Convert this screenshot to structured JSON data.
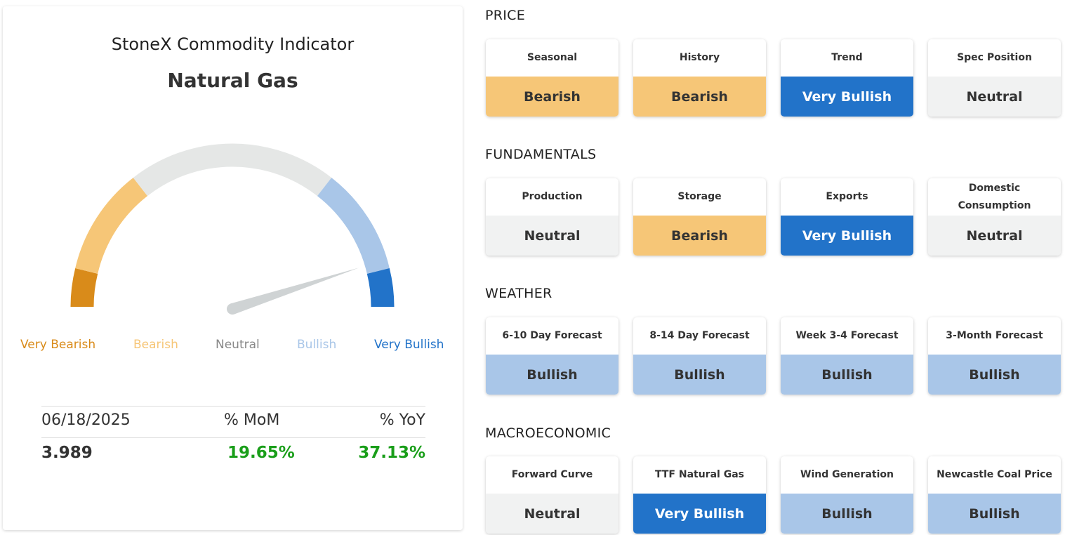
{
  "indicator": {
    "title": "StoneX Commodity Indicator",
    "commodity": "Natural Gas"
  },
  "gauge": {
    "needle_level": 0.9,
    "labels": [
      "Very Bearish",
      "Bearish",
      "Neutral",
      "Bullish",
      "Very Bullish"
    ],
    "colors": {
      "very_bearish": "#d98b1a",
      "bearish": "#f6c677",
      "neutral": "#e5e7e6",
      "bullish": "#a9c6e8",
      "very_bullish": "#2273c9",
      "needle": "#cfd3d4"
    }
  },
  "stats": {
    "date": "06/18/2025",
    "mom_label": "% MoM",
    "yoy_label": "% YoY",
    "price": "3.989",
    "mom": "19.65%",
    "yoy": "37.13%",
    "positive_color": "#1a9e1a"
  },
  "sections": [
    {
      "title": "PRICE",
      "tiles": [
        {
          "label": "Seasonal",
          "value": "Bearish",
          "level": "bearish"
        },
        {
          "label": "History",
          "value": "Bearish",
          "level": "bearish"
        },
        {
          "label": "Trend",
          "value": "Very Bullish",
          "level": "verybull"
        },
        {
          "label": "Spec Position",
          "value": "Neutral",
          "level": "neutral"
        }
      ]
    },
    {
      "title": "FUNDAMENTALS",
      "tiles": [
        {
          "label": "Production",
          "value": "Neutral",
          "level": "neutral"
        },
        {
          "label": "Storage",
          "value": "Bearish",
          "level": "bearish"
        },
        {
          "label": "Exports",
          "value": "Very Bullish",
          "level": "verybull"
        },
        {
          "label": "Domestic Consumption",
          "value": "Neutral",
          "level": "neutral"
        }
      ]
    },
    {
      "title": "WEATHER",
      "tiles": [
        {
          "label": "6-10 Day Forecast",
          "value": "Bullish",
          "level": "bullish"
        },
        {
          "label": "8-14 Day Forecast",
          "value": "Bullish",
          "level": "bullish"
        },
        {
          "label": "Week 3-4 Forecast",
          "value": "Bullish",
          "level": "bullish"
        },
        {
          "label": "3-Month Forecast",
          "value": "Bullish",
          "level": "bullish"
        }
      ]
    },
    {
      "title": "MACROECONOMIC",
      "tiles": [
        {
          "label": "Forward Curve",
          "value": "Neutral",
          "level": "neutral"
        },
        {
          "label": "TTF Natural Gas",
          "value": "Very Bullish",
          "level": "verybull"
        },
        {
          "label": "Wind Generation",
          "value": "Bullish",
          "level": "bullish"
        },
        {
          "label": "Newcastle Coal Price",
          "value": "Bullish",
          "level": "bullish"
        }
      ]
    }
  ]
}
